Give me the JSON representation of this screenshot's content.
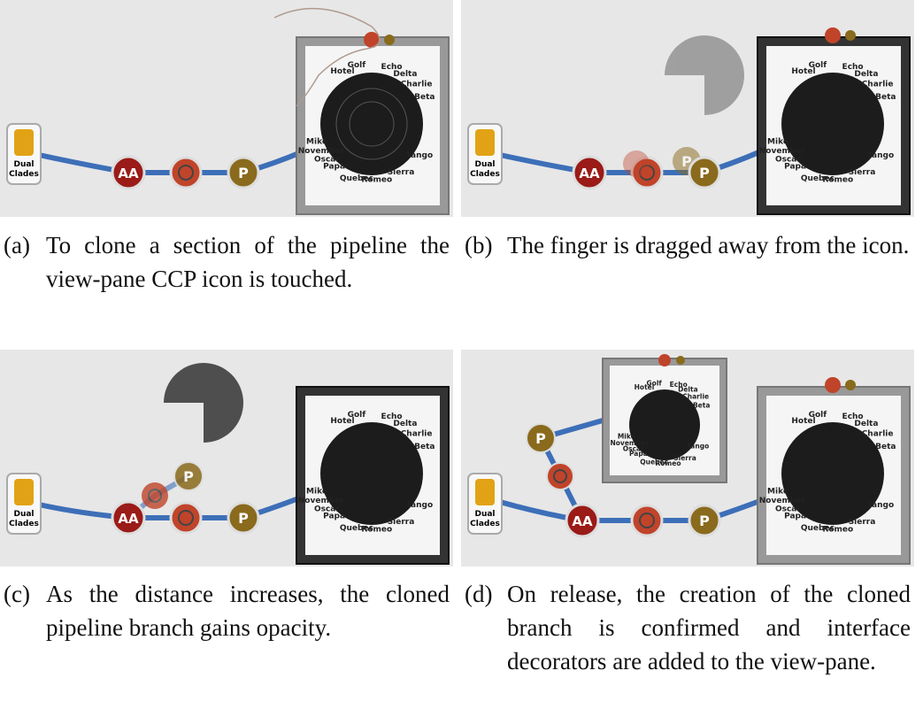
{
  "node_labels": {
    "source": [
      "Dual",
      "Clades"
    ],
    "aa": "AA",
    "p": "P"
  },
  "radial_labels": [
    "Hotel",
    "Golf",
    "Echo",
    "Delta",
    "Charlie",
    "Beta",
    "Mike",
    "November",
    "Oscar",
    "Papa",
    "Quebec",
    "Romeo",
    "Sierra",
    "Tango"
  ],
  "captions": [
    {
      "tag": "(a)",
      "text": "To clone a section of the pipeline the view-pane CCP icon is touched."
    },
    {
      "tag": "(b)",
      "text": "The finger is dragged away from the icon."
    },
    {
      "tag": "(c)",
      "text": "As the distance increases, the cloned pipeline branch gains opacity."
    },
    {
      "tag": "(d)",
      "text": "On release, the creation of the cloned branch is confirmed and interface decorators are added to the view-pane."
    }
  ],
  "colors": {
    "panel_bg": "#e7e7e7",
    "pipe": "#3d6fb8",
    "aa_node": "#9a1b17",
    "ccp_node": "#c0442a",
    "p_node": "#8a6a1c",
    "source_icon": "#e1a315",
    "radial_fill": "#1c1c1c",
    "hand_stroke": "#b09a8e"
  }
}
